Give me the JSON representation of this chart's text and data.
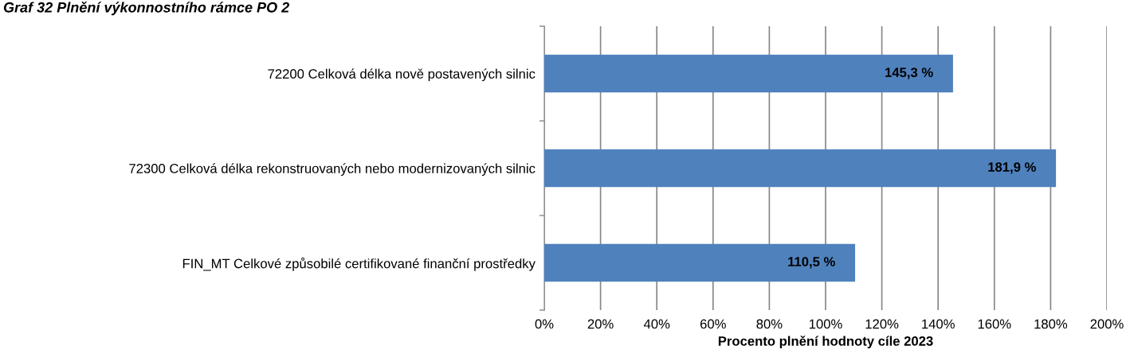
{
  "chart_data": {
    "type": "bar",
    "orientation": "horizontal",
    "title": "Graf 32 Plnění výkonnostního rámce PO 2",
    "xlabel": "Procento plnění hodnoty cíle 2023",
    "categories": [
      "72200 Celková délka nově postavených silnic",
      "72300 Celková délka rekonstruovaných nebo modernizovaných silnic",
      "FIN_MT Celkové způsobilé certifikované finanční prostředky"
    ],
    "values": [
      145.3,
      181.9,
      110.5
    ],
    "color": "#4f81bd",
    "value_labels": [
      "145,3 %",
      "181,9 %",
      "110,5 %"
    ],
    "xlim": [
      0,
      200
    ],
    "xticks": [
      {
        "value": 0,
        "label": "0%"
      },
      {
        "value": 20,
        "label": "20%"
      },
      {
        "value": 40,
        "label": "40%"
      },
      {
        "value": 60,
        "label": "60%"
      },
      {
        "value": 80,
        "label": "80%"
      },
      {
        "value": 100,
        "label": "100%"
      },
      {
        "value": 120,
        "label": "120%"
      },
      {
        "value": 140,
        "label": "140%"
      },
      {
        "value": 160,
        "label": "160%"
      },
      {
        "value": 180,
        "label": "180%"
      },
      {
        "value": 200,
        "label": "200%"
      }
    ],
    "grid": "x"
  }
}
